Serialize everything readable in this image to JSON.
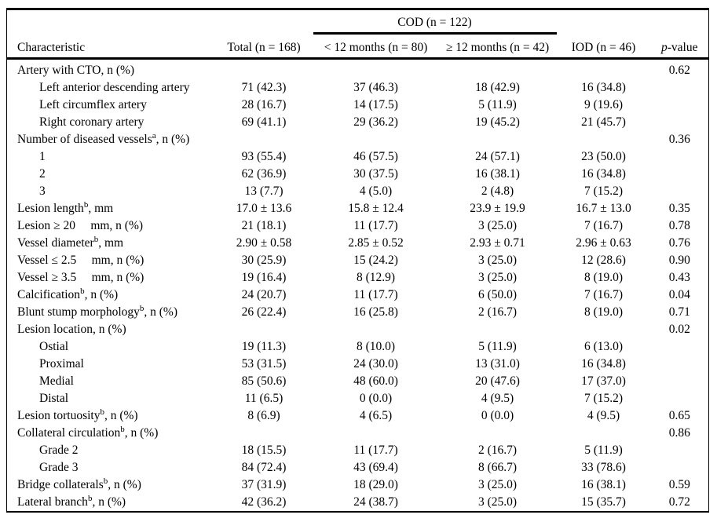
{
  "colors": {
    "background": "#ffffff",
    "text": "#000000",
    "rule": "#000000"
  },
  "table": {
    "header": {
      "characteristic": "Characteristic",
      "total": "Total (n = 168)",
      "cod_spanner": "COD (n = 122)",
      "cod_sub1": "< 12 months (n = 80)",
      "cod_sub2": "≥ 12 months (n = 42)",
      "iod": "IOD (n = 46)",
      "p_italic": "p",
      "p_rest": "-value"
    },
    "rows": [
      {
        "label": "Artery with CTO, n (%)",
        "indent": false,
        "values": [
          "",
          "",
          "",
          ""
        ],
        "p": "0.62"
      },
      {
        "label": "Left anterior descending artery",
        "indent": true,
        "values": [
          "71 (42.3)",
          "37 (46.3)",
          "18 (42.9)",
          "16 (34.8)"
        ],
        "p": ""
      },
      {
        "label": "Left circumflex artery",
        "indent": true,
        "values": [
          "28 (16.7)",
          "14 (17.5)",
          "5 (11.9)",
          "9 (19.6)"
        ],
        "p": ""
      },
      {
        "label": "Right coronary artery",
        "indent": true,
        "values": [
          "69 (41.1)",
          "29 (36.2)",
          "19 (45.2)",
          "21 (45.7)"
        ],
        "p": ""
      },
      {
        "label": "Number of diseased vessels^a^, n (%)",
        "indent": false,
        "values": [
          "",
          "",
          "",
          ""
        ],
        "p": "0.36"
      },
      {
        "label": "1",
        "indent": true,
        "values": [
          "93 (55.4)",
          "46 (57.5)",
          "24 (57.1)",
          "23 (50.0)"
        ],
        "p": ""
      },
      {
        "label": "2",
        "indent": true,
        "values": [
          "62 (36.9)",
          "30 (37.5)",
          "16 (38.1)",
          "16 (34.8)"
        ],
        "p": ""
      },
      {
        "label": "3",
        "indent": true,
        "values": [
          "13 (7.7)",
          "4 (5.0)",
          "2 (4.8)",
          "7 (15.2)"
        ],
        "p": ""
      },
      {
        "label": "Lesion length^b^, mm",
        "indent": false,
        "values": [
          "17.0 ± 13.6",
          "15.8 ± 12.4",
          "23.9 ± 19.9",
          "16.7 ± 13.0"
        ],
        "p": "0.35"
      },
      {
        "label": "Lesion ≥ 20     mm, n (%)",
        "indent": false,
        "values": [
          "21 (18.1)",
          "11 (17.7)",
          "3 (25.0)",
          "7 (16.7)"
        ],
        "p": "0.78"
      },
      {
        "label": "Vessel diameter^b^, mm",
        "indent": false,
        "values": [
          "2.90 ± 0.58",
          "2.85 ± 0.52",
          "2.93 ± 0.71",
          "2.96 ± 0.63"
        ],
        "p": "0.76"
      },
      {
        "label": "Vessel ≤ 2.5     mm, n (%)",
        "indent": false,
        "values": [
          "30 (25.9)",
          "15 (24.2)",
          "3 (25.0)",
          "12 (28.6)"
        ],
        "p": "0.90"
      },
      {
        "label": "Vessel ≥ 3.5     mm, n (%)",
        "indent": false,
        "values": [
          "19 (16.4)",
          "8 (12.9)",
          "3 (25.0)",
          "8 (19.0)"
        ],
        "p": "0.43"
      },
      {
        "label": "Calcification^b^, n (%)",
        "indent": false,
        "values": [
          "24 (20.7)",
          "11 (17.7)",
          "6 (50.0)",
          "7 (16.7)"
        ],
        "p": "0.04"
      },
      {
        "label": "Blunt stump morphology^b^, n (%)",
        "indent": false,
        "values": [
          "26 (22.4)",
          "16 (25.8)",
          "2 (16.7)",
          "8 (19.0)"
        ],
        "p": "0.71"
      },
      {
        "label": "Lesion location, n (%)",
        "indent": false,
        "values": [
          "",
          "",
          "",
          ""
        ],
        "p": "0.02"
      },
      {
        "label": "Ostial",
        "indent": true,
        "values": [
          "19 (11.3)",
          "8 (10.0)",
          "5 (11.9)",
          "6 (13.0)"
        ],
        "p": ""
      },
      {
        "label": "Proximal",
        "indent": true,
        "values": [
          "53 (31.5)",
          "24 (30.0)",
          "13 (31.0)",
          "16 (34.8)"
        ],
        "p": ""
      },
      {
        "label": "Medial",
        "indent": true,
        "values": [
          "85 (50.6)",
          "48 (60.0)",
          "20 (47.6)",
          "17 (37.0)"
        ],
        "p": ""
      },
      {
        "label": "Distal",
        "indent": true,
        "values": [
          "11 (6.5)",
          "0 (0.0)",
          "4 (9.5)",
          "7 (15.2)"
        ],
        "p": ""
      },
      {
        "label": "Lesion tortuosity^b^, n (%)",
        "indent": false,
        "values": [
          "8 (6.9)",
          "4 (6.5)",
          "0 (0.0)",
          "4 (9.5)"
        ],
        "p": "0.65"
      },
      {
        "label": "Collateral circulation^b^, n (%)",
        "indent": false,
        "values": [
          "",
          "",
          "",
          ""
        ],
        "p": "0.86"
      },
      {
        "label": "Grade 2",
        "indent": true,
        "values": [
          "18 (15.5)",
          "11 (17.7)",
          "2 (16.7)",
          "5 (11.9)"
        ],
        "p": ""
      },
      {
        "label": "Grade 3",
        "indent": true,
        "values": [
          "84 (72.4)",
          "43 (69.4)",
          "8 (66.7)",
          "33 (78.6)"
        ],
        "p": ""
      },
      {
        "label": "Bridge collaterals^b^, n (%)",
        "indent": false,
        "values": [
          "37 (31.9)",
          "18 (29.0)",
          "3 (25.0)",
          "16 (38.1)"
        ],
        "p": "0.59"
      },
      {
        "label": "Lateral branch^b^, n (%)",
        "indent": false,
        "values": [
          "42 (36.2)",
          "24 (38.7)",
          "3 (25.0)",
          "15 (35.7)"
        ],
        "p": "0.72"
      }
    ]
  }
}
